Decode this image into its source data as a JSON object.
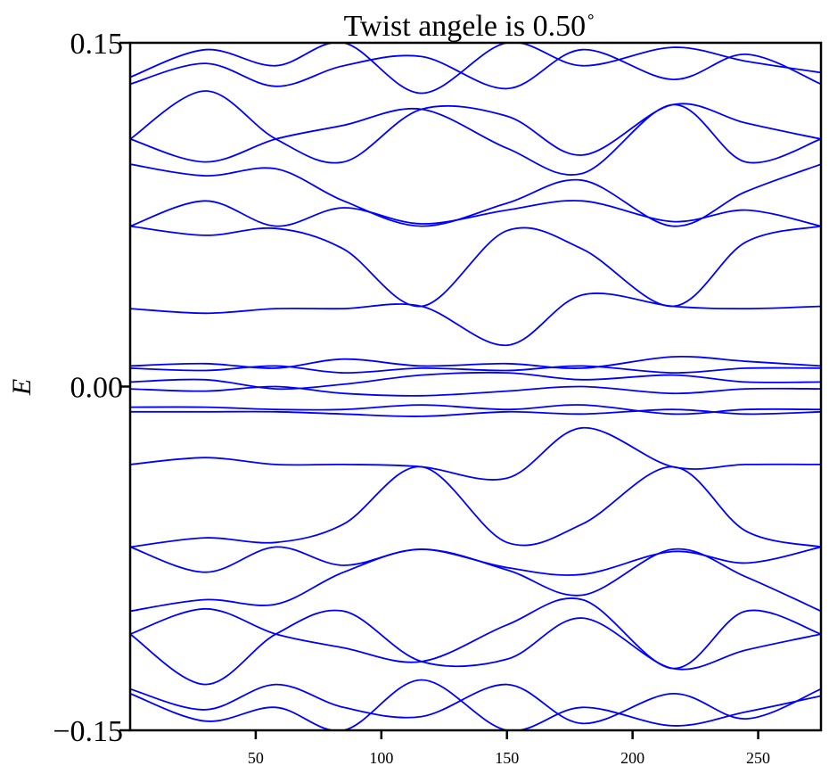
{
  "chart_data": {
    "type": "line",
    "title": "Twist angele is 0.50",
    "title_superscript": "∘",
    "ylabel": "E",
    "xlabel": "",
    "xlim": [
      0,
      275
    ],
    "ylim": [
      -0.15,
      0.15
    ],
    "x_ticks": [
      "50",
      "100",
      "150",
      "200",
      "250"
    ],
    "x_tick_values": [
      50,
      100,
      150,
      200,
      250
    ],
    "y_ticks": [
      "−0.15",
      "0.00",
      "0.15"
    ],
    "y_tick_values": [
      -0.15,
      0.0,
      0.15
    ],
    "grid": false,
    "line_color": "#0000ff",
    "x": [
      0,
      30,
      58,
      85,
      116,
      150,
      180,
      216,
      245,
      275
    ],
    "series": [
      {
        "values": [
          0.135,
          0.147,
          0.14,
          0.15,
          0.128,
          0.15,
          0.14,
          0.148,
          0.142,
          0.137
        ]
      },
      {
        "values": [
          0.132,
          0.141,
          0.131,
          0.14,
          0.144,
          0.13,
          0.147,
          0.134,
          0.145,
          0.132
        ]
      },
      {
        "values": [
          0.108,
          0.129,
          0.108,
          0.098,
          0.121,
          0.118,
          0.101,
          0.123,
          0.115,
          0.108
        ]
      },
      {
        "values": [
          0.108,
          0.098,
          0.108,
          0.114,
          0.121,
          0.104,
          0.093,
          0.123,
          0.098,
          0.108
        ]
      },
      {
        "values": [
          0.097,
          0.092,
          0.095,
          0.081,
          0.07,
          0.08,
          0.09,
          0.07,
          0.085,
          0.097
        ]
      },
      {
        "values": [
          0.07,
          0.081,
          0.07,
          0.078,
          0.071,
          0.077,
          0.081,
          0.072,
          0.077,
          0.07
        ]
      },
      {
        "values": [
          0.07,
          0.066,
          0.069,
          0.06,
          0.035,
          0.068,
          0.06,
          0.035,
          0.063,
          0.07
        ]
      },
      {
        "values": [
          0.034,
          0.032,
          0.034,
          0.034,
          0.035,
          0.018,
          0.04,
          0.035,
          0.034,
          0.035
        ]
      },
      {
        "values": [
          0.009,
          0.01,
          0.008,
          0.012,
          0.009,
          0.01,
          0.008,
          0.013,
          0.011,
          0.009
        ]
      },
      {
        "values": [
          0.008,
          0.007,
          0.009,
          0.006,
          0.008,
          0.007,
          0.009,
          0.006,
          0.008,
          0.008
        ]
      },
      {
        "values": [
          0.002,
          0.003,
          -0.001,
          0.001,
          0.005,
          0.006,
          0.003,
          0.005,
          0.002,
          0.002
        ]
      },
      {
        "values": [
          -0.001,
          -0.002,
          0.0,
          -0.003,
          -0.004,
          -0.002,
          0.0,
          -0.003,
          -0.001,
          -0.001
        ]
      },
      {
        "values": [
          -0.009,
          -0.009,
          -0.01,
          -0.01,
          -0.008,
          -0.01,
          -0.008,
          -0.012,
          -0.01,
          -0.01
        ]
      },
      {
        "values": [
          -0.011,
          -0.011,
          -0.011,
          -0.012,
          -0.013,
          -0.011,
          -0.012,
          -0.01,
          -0.012,
          -0.011
        ]
      },
      {
        "values": [
          -0.034,
          -0.031,
          -0.034,
          -0.034,
          -0.035,
          -0.04,
          -0.018,
          -0.035,
          -0.034,
          -0.034
        ]
      },
      {
        "values": [
          -0.07,
          -0.066,
          -0.068,
          -0.06,
          -0.035,
          -0.068,
          -0.06,
          -0.035,
          -0.063,
          -0.07
        ]
      },
      {
        "values": [
          -0.07,
          -0.081,
          -0.07,
          -0.078,
          -0.071,
          -0.079,
          -0.082,
          -0.072,
          -0.077,
          -0.07
        ]
      },
      {
        "values": [
          -0.098,
          -0.093,
          -0.095,
          -0.081,
          -0.071,
          -0.08,
          -0.091,
          -0.071,
          -0.083,
          -0.098
        ]
      },
      {
        "values": [
          -0.108,
          -0.13,
          -0.108,
          -0.098,
          -0.12,
          -0.119,
          -0.101,
          -0.123,
          -0.115,
          -0.108
        ]
      },
      {
        "values": [
          -0.108,
          -0.097,
          -0.108,
          -0.114,
          -0.12,
          -0.104,
          -0.093,
          -0.123,
          -0.098,
          -0.108
        ]
      },
      {
        "values": [
          -0.132,
          -0.141,
          -0.13,
          -0.14,
          -0.144,
          -0.13,
          -0.147,
          -0.134,
          -0.145,
          -0.132
        ]
      },
      {
        "values": [
          -0.134,
          -0.146,
          -0.14,
          -0.15,
          -0.128,
          -0.15,
          -0.14,
          -0.148,
          -0.142,
          -0.135
        ]
      }
    ]
  }
}
